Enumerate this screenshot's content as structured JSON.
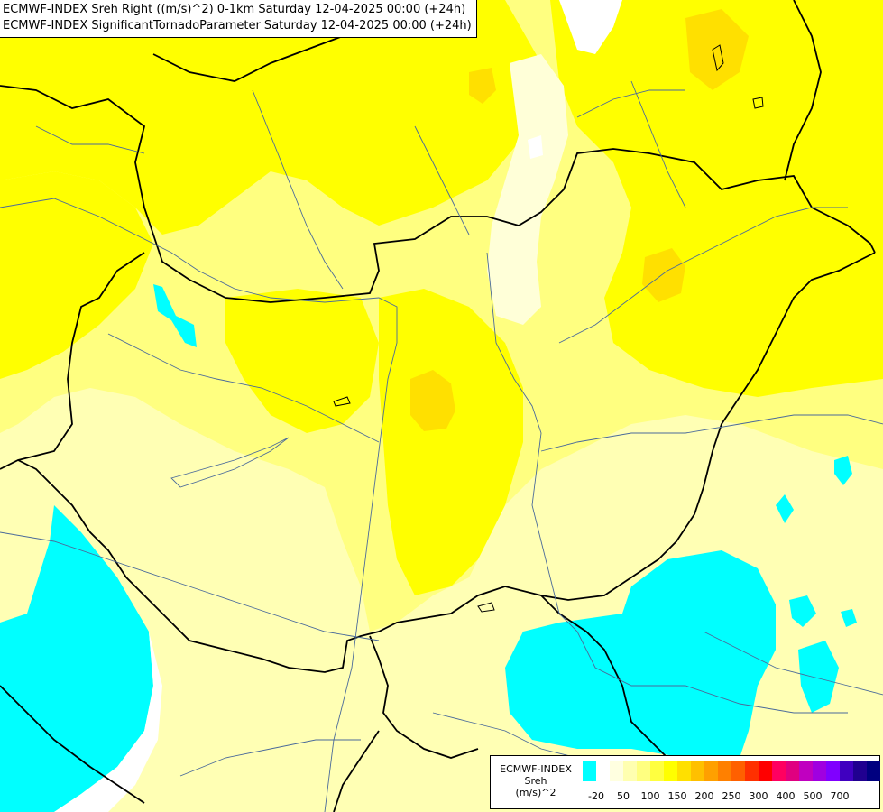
{
  "header": {
    "line1": "ECMWF-INDEX Sreh Right ((m/s)^2) 0-1km Saturday 12-04-2025 00:00 (+24h)",
    "line2": "ECMWF-INDEX SignificantTornadoParameter Saturday 12-04-2025 00:00 (+24h)"
  },
  "legend": {
    "title_lines": [
      "ECMWF-INDEX",
      "Sreh",
      "(m/s)^2"
    ],
    "colors": [
      "#00ffff",
      "#ffffff",
      "#ffffe0",
      "#ffffb0",
      "#ffff80",
      "#ffff40",
      "#ffff00",
      "#ffe000",
      "#ffc000",
      "#ffa000",
      "#ff8000",
      "#ff6000",
      "#ff3000",
      "#ff0000",
      "#ff0060",
      "#e00080",
      "#c000c0",
      "#a000e0",
      "#8000ff",
      "#4000c0",
      "#200090",
      "#000080"
    ],
    "labels": [
      "-20",
      "50",
      "100",
      "150",
      "200",
      "250",
      "300",
      "400",
      "500",
      "700"
    ]
  },
  "colors": {
    "cyan": "#00ffff",
    "white": "#ffffff",
    "pale_yellow": "#ffffb4",
    "light_yellow": "#ffff80",
    "yellow": "#ffff00",
    "gold": "#ffe000",
    "border": "#000000",
    "river": "#4a6a9a"
  }
}
